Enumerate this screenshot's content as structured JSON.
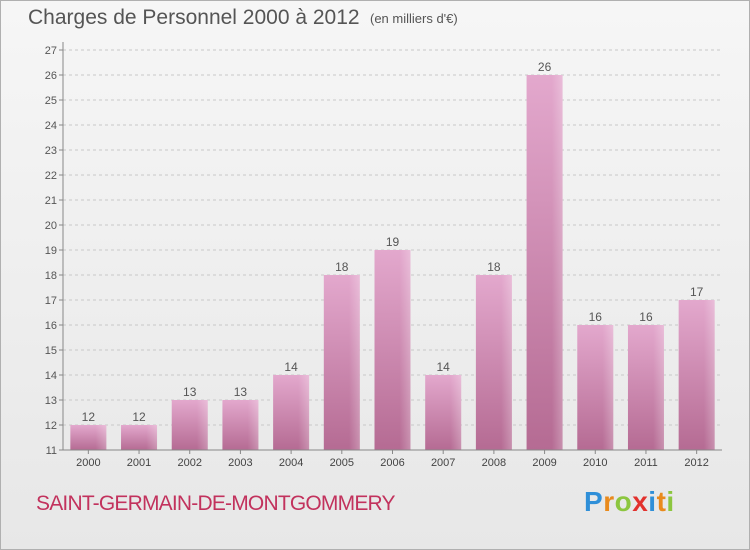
{
  "chart_data": {
    "type": "bar",
    "title": "Charges de Personnel 2000 à 2012",
    "subtitle": "(en milliers d'€)",
    "categories": [
      "2000",
      "2001",
      "2002",
      "2003",
      "2004",
      "2005",
      "2006",
      "2007",
      "2008",
      "2009",
      "2010",
      "2011",
      "2012"
    ],
    "values": [
      12,
      12,
      13,
      13,
      14,
      18,
      19,
      14,
      18,
      26,
      16,
      16,
      17
    ],
    "data_labels": [
      "12",
      "12",
      "13",
      "13",
      "14",
      "18",
      "19",
      "14",
      "18",
      "26",
      "16",
      "16",
      "17"
    ],
    "ylim": [
      11,
      27
    ],
    "y_ticks": [
      "11",
      "12",
      "13",
      "14",
      "15",
      "16",
      "17",
      "18",
      "19",
      "20",
      "21",
      "22",
      "23",
      "24",
      "25",
      "26",
      "27"
    ],
    "grid": "horizontal dashed",
    "bar_color": "#d48fb8"
  },
  "footer": {
    "commune": "SAINT-GERMAIN-DE-MONTGOMMERY",
    "logo_letters": [
      "P",
      "r",
      "o",
      "x",
      "i",
      "t",
      "i"
    ],
    "logo_colors": [
      "#2f8fd8",
      "#e98a1c",
      "#8cc63f",
      "#e2312d",
      "#2f8fd8",
      "#e98a1c",
      "#8cc63f"
    ]
  }
}
